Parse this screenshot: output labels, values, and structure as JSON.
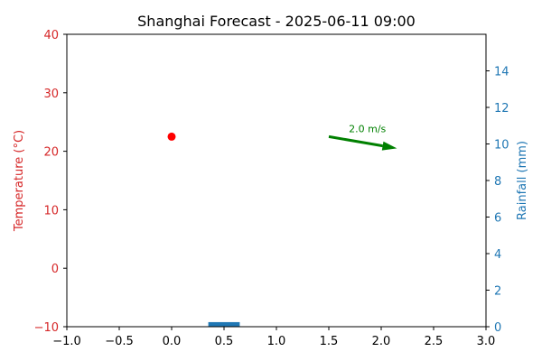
{
  "chart_data": {
    "type": "scatter",
    "title": "Shanghai Forecast - 2025-06-11 09:00",
    "x_axis": {
      "xlim": [
        -1.0,
        3.0
      ],
      "ticks": [
        -1.0,
        -0.5,
        0.0,
        0.5,
        1.0,
        1.5,
        2.0,
        2.5,
        3.0
      ],
      "tick_labels": [
        "−1.0",
        "−0.5",
        "0.0",
        "0.5",
        "1.0",
        "1.5",
        "2.0",
        "2.5",
        "3.0"
      ]
    },
    "y_left": {
      "label": "Temperature (°C)",
      "ylim": [
        -10,
        40
      ],
      "ticks": [
        -10,
        0,
        10,
        20,
        30,
        40
      ],
      "tick_labels": [
        "−10",
        "0",
        "10",
        "20",
        "30",
        "40"
      ],
      "color": "#d62728"
    },
    "y_right": {
      "label": "Rainfall (mm)",
      "ylim": [
        0,
        16
      ],
      "ticks": [
        0,
        2,
        4,
        6,
        8,
        10,
        12,
        14
      ],
      "tick_labels": [
        "0",
        "2",
        "4",
        "6",
        "8",
        "10",
        "12",
        "14"
      ],
      "color": "#1f77b4"
    },
    "temperature_point": {
      "x": 0.0,
      "y": 22.5,
      "color": "#ff0000"
    },
    "rainfall_bar": {
      "x": 0.5,
      "width": 0.3,
      "value": 0.25,
      "color": "#1f77b4"
    },
    "wind_arrow": {
      "start": [
        1.5,
        22.5
      ],
      "end": [
        2.15,
        20.5
      ],
      "label": "2.0 m/s",
      "color": "#008000"
    },
    "grid": false
  }
}
